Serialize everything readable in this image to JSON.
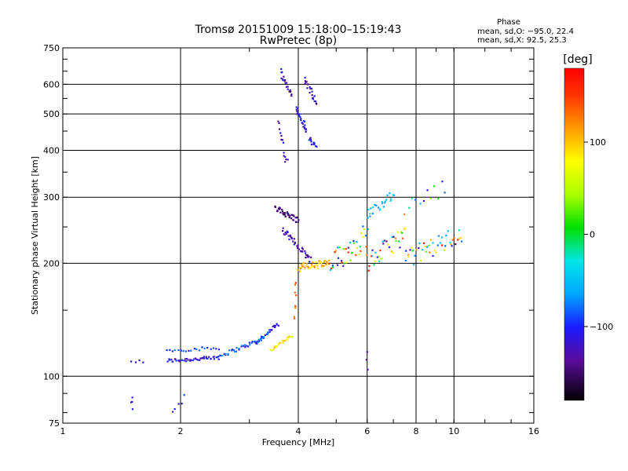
{
  "title_line1": "Tromsø 20151009 15:18:00–15:19:43",
  "title_line2": "RwPretec (8p)",
  "phase_info": {
    "header": "Phase",
    "line_o": "mean, sd,O: −95.0, 22.4",
    "line_x": "mean, sd,X:  92.5, 25.3"
  },
  "colorbar": {
    "label": "[deg]",
    "ticks": [
      {
        "value": 100,
        "label": "100"
      },
      {
        "value": 0,
        "label": "0"
      },
      {
        "value": -100,
        "label": "−100"
      }
    ],
    "range": [
      -180,
      180
    ]
  },
  "chart_data": {
    "type": "scatter",
    "xlabel": "Frequency [MHz]",
    "ylabel": "Stationary phase Virtual Height [km]",
    "xscale": "log",
    "yscale": "log",
    "xlim": [
      1,
      16
    ],
    "ylim": [
      75,
      750
    ],
    "xticks": [
      {
        "value": 1,
        "label": "1"
      },
      {
        "value": 2,
        "label": "2"
      },
      {
        "value": 4,
        "label": "4"
      },
      {
        "value": 6,
        "label": "6"
      },
      {
        "value": 8,
        "label": "8"
      },
      {
        "value": 10,
        "label": "10"
      },
      {
        "value": 16,
        "label": "16"
      }
    ],
    "yticks": [
      {
        "value": 75,
        "label": "75"
      },
      {
        "value": 100,
        "label": "100"
      },
      {
        "value": 200,
        "label": "200"
      },
      {
        "value": 300,
        "label": "300"
      },
      {
        "value": 400,
        "label": "400"
      },
      {
        "value": 500,
        "label": "500"
      },
      {
        "value": 600,
        "label": "600"
      },
      {
        "value": 750,
        "label": "750"
      }
    ],
    "xgrid": [
      2,
      4,
      6,
      8,
      10
    ],
    "ygrid": [
      100,
      200,
      300,
      400,
      500,
      600
    ],
    "clusters": [
      {
        "f0": 1.85,
        "f1": 2.5,
        "h0": 110,
        "h1": 112,
        "n": 45,
        "p0": -140,
        "p1": -85,
        "jh": 0.012
      },
      {
        "f0": 1.85,
        "f1": 2.5,
        "h0": 117,
        "h1": 119,
        "n": 20,
        "p0": -110,
        "p1": -75,
        "jh": 0.01
      },
      {
        "f0": 2.5,
        "f1": 3.2,
        "h0": 113,
        "h1": 125,
        "n": 35,
        "p0": -120,
        "p1": -60,
        "jh": 0.012
      },
      {
        "f0": 3.1,
        "f1": 3.55,
        "h0": 122,
        "h1": 138,
        "n": 30,
        "p0": -125,
        "p1": -70,
        "jh": 0.012
      },
      {
        "f0": 3.4,
        "f1": 3.85,
        "h0": 118,
        "h1": 128,
        "n": 20,
        "p0": 60,
        "p1": 110,
        "jh": 0.012
      },
      {
        "f0": 3.5,
        "f1": 4.0,
        "h0": 280,
        "h1": 260,
        "n": 40,
        "p0": -165,
        "p1": -120,
        "jh": 0.02
      },
      {
        "f0": 3.65,
        "f1": 4.3,
        "h0": 245,
        "h1": 205,
        "n": 40,
        "p0": -160,
        "p1": -110,
        "jh": 0.02
      },
      {
        "f0": 3.6,
        "f1": 3.85,
        "h0": 650,
        "h1": 560,
        "n": 20,
        "p0": -150,
        "p1": -95,
        "jh": 0.02
      },
      {
        "f0": 3.55,
        "f1": 3.75,
        "h0": 470,
        "h1": 370,
        "n": 14,
        "p0": -145,
        "p1": -100,
        "jh": 0.03
      },
      {
        "f0": 3.95,
        "f1": 4.2,
        "h0": 520,
        "h1": 450,
        "n": 25,
        "p0": -135,
        "p1": -90,
        "jh": 0.025
      },
      {
        "f0": 4.15,
        "f1": 4.45,
        "h0": 620,
        "h1": 530,
        "n": 22,
        "p0": -150,
        "p1": -100,
        "jh": 0.025
      },
      {
        "f0": 4.25,
        "f1": 4.45,
        "h0": 430,
        "h1": 410,
        "n": 12,
        "p0": -130,
        "p1": -90,
        "jh": 0.015
      },
      {
        "f0": 4.0,
        "f1": 4.8,
        "h0": 195,
        "h1": 200,
        "n": 45,
        "p0": 80,
        "p1": 130,
        "jh": 0.025
      },
      {
        "f0": 4.8,
        "f1": 6.0,
        "h0": 195,
        "h1": 240,
        "n": 40,
        "p0": -140,
        "p1": 170,
        "jh": 0.08
      },
      {
        "f0": 6.0,
        "f1": 7.0,
        "h0": 270,
        "h1": 305,
        "n": 25,
        "p0": -70,
        "p1": -30,
        "jh": 0.03
      },
      {
        "f0": 6.0,
        "f1": 7.5,
        "h0": 200,
        "h1": 240,
        "n": 35,
        "p0": -160,
        "p1": 170,
        "jh": 0.06
      },
      {
        "f0": 7.5,
        "f1": 10.5,
        "h0": 205,
        "h1": 240,
        "n": 45,
        "p0": -160,
        "p1": 175,
        "jh": 0.06
      },
      {
        "f0": 7.5,
        "f1": 9.5,
        "h0": 280,
        "h1": 320,
        "n": 12,
        "p0": -120,
        "p1": 170,
        "jh": 0.05
      },
      {
        "f0": 1.5,
        "f1": 1.6,
        "h0": 110,
        "h1": 110,
        "n": 4,
        "p0": -130,
        "p1": -100,
        "jh": 0.01
      },
      {
        "f0": 1.5,
        "f1": 1.5,
        "h0": 82,
        "h1": 88,
        "n": 4,
        "p0": -120,
        "p1": -100,
        "jh": 0.02
      },
      {
        "f0": 1.9,
        "f1": 2.05,
        "h0": 80,
        "h1": 88,
        "n": 5,
        "p0": -130,
        "p1": -90,
        "jh": 0.02
      },
      {
        "f0": 3.9,
        "f1": 3.95,
        "h0": 140,
        "h1": 180,
        "n": 8,
        "p0": 120,
        "p1": 160,
        "jh": 0.02
      },
      {
        "f0": 6.0,
        "f1": 6.0,
        "h0": 105,
        "h1": 115,
        "n": 3,
        "p0": -150,
        "p1": -120,
        "jh": 0.01
      }
    ]
  }
}
